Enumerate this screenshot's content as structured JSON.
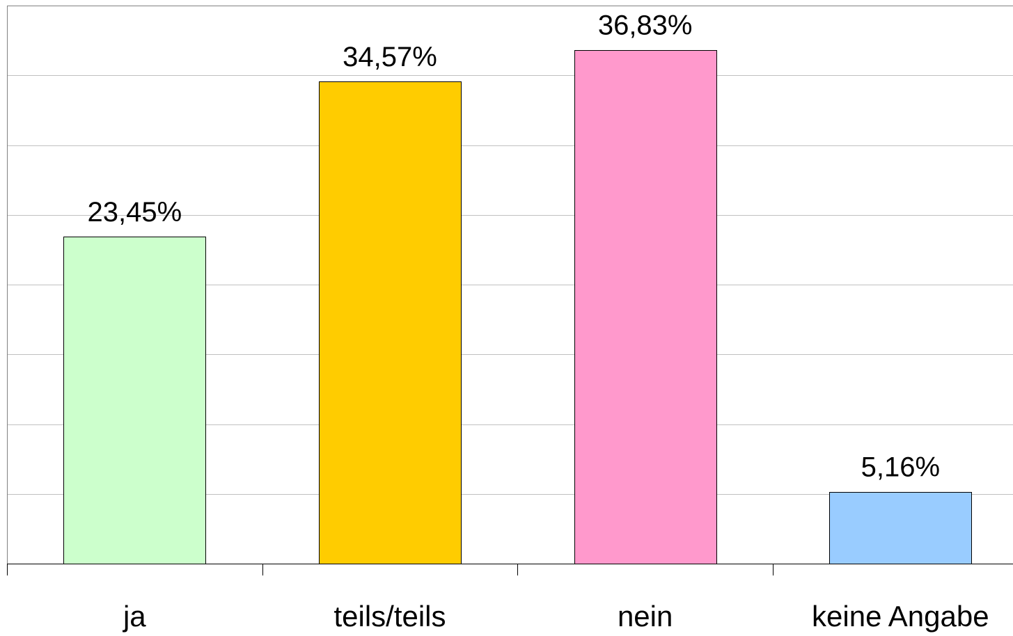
{
  "chart_data": {
    "type": "bar",
    "title": "",
    "xlabel": "",
    "ylabel": "",
    "categories": [
      "ja",
      "teils/teils",
      "nein",
      "keine Angabe"
    ],
    "values": [
      23.45,
      34.57,
      36.83,
      5.16
    ],
    "value_labels": [
      "23,45%",
      "34,57%",
      "36,83%",
      "5,16%"
    ],
    "colors": [
      "#ccffcc",
      "#ffcc00",
      "#ff99cc",
      "#99ccff"
    ],
    "ylim": [
      0,
      40
    ],
    "y_gridline_step": 5,
    "y_tick_labels_shown": false,
    "grid": true,
    "legend": "none"
  }
}
